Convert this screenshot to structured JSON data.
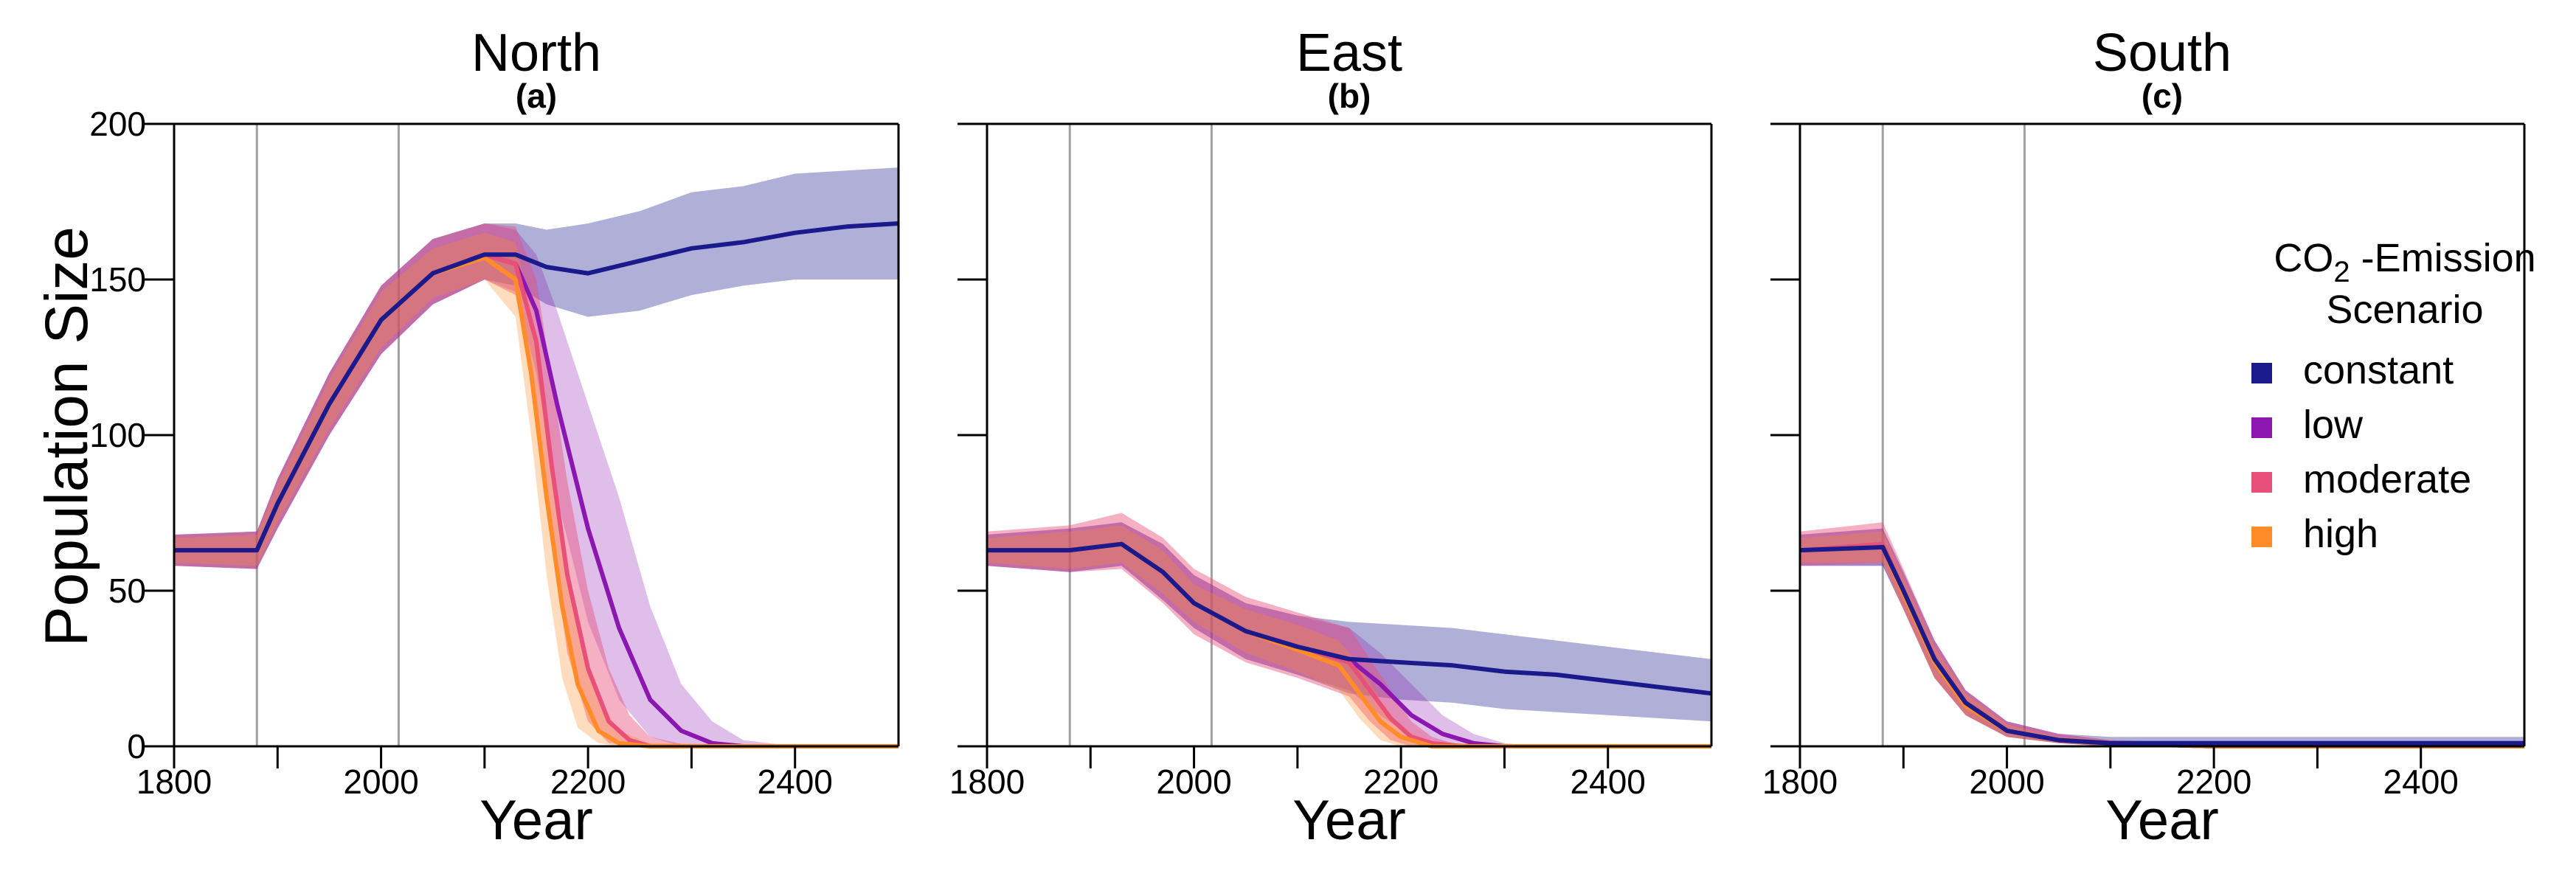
{
  "chart_data": [
    {
      "type": "line",
      "title": "North",
      "subtitle": "(a)",
      "xlabel": "Year",
      "ylabel": "Population Size",
      "xlim": [
        1800,
        2500
      ],
      "ylim": [
        0,
        200
      ],
      "xticks": [
        1800,
        2000,
        2200,
        2400
      ],
      "xticks_minor": [
        1900,
        2100,
        2300
      ],
      "yticks": [
        0,
        50,
        100,
        150,
        200
      ],
      "reference_lines_x": [
        1880,
        2017
      ],
      "series": [
        {
          "name": "constant",
          "color": "#1a1a8c",
          "band_opacity": 0.35,
          "x": [
            1800,
            1880,
            1900,
            1950,
            2000,
            2050,
            2100,
            2130,
            2160,
            2200,
            2250,
            2300,
            2350,
            2400,
            2450,
            2500
          ],
          "y": [
            63,
            63,
            78,
            110,
            137,
            152,
            158,
            158,
            154,
            152,
            156,
            160,
            162,
            165,
            167,
            168
          ],
          "lo": [
            58,
            57,
            70,
            100,
            126,
            142,
            150,
            148,
            142,
            138,
            140,
            145,
            148,
            150,
            150,
            150
          ],
          "hi": [
            68,
            69,
            86,
            120,
            148,
            163,
            168,
            168,
            166,
            168,
            172,
            178,
            180,
            184,
            185,
            186
          ]
        },
        {
          "name": "low",
          "color": "#8b16b0",
          "band_opacity": 0.28,
          "x": [
            1800,
            1880,
            1900,
            1950,
            2000,
            2050,
            2100,
            2130,
            2150,
            2170,
            2200,
            2230,
            2260,
            2290,
            2320,
            2350,
            2400,
            2500
          ],
          "y": [
            63,
            63,
            78,
            110,
            137,
            152,
            158,
            155,
            140,
            110,
            70,
            38,
            15,
            5,
            1,
            0,
            0,
            0
          ],
          "lo": [
            58,
            57,
            70,
            100,
            126,
            142,
            150,
            146,
            120,
            80,
            40,
            15,
            3,
            0,
            0,
            0,
            0,
            0
          ],
          "hi": [
            68,
            69,
            86,
            120,
            148,
            163,
            168,
            166,
            158,
            140,
            110,
            80,
            45,
            20,
            8,
            2,
            0,
            0
          ]
        },
        {
          "name": "moderate",
          "color": "#e8507a",
          "band_opacity": 0.45,
          "x": [
            1800,
            1880,
            1900,
            1950,
            2000,
            2050,
            2100,
            2130,
            2150,
            2165,
            2180,
            2200,
            2220,
            2240,
            2260,
            2300,
            2500
          ],
          "y": [
            63,
            63,
            78,
            110,
            137,
            152,
            158,
            155,
            130,
            90,
            55,
            25,
            8,
            2,
            0,
            0,
            0
          ],
          "lo": [
            58,
            57,
            70,
            100,
            126,
            142,
            150,
            145,
            110,
            65,
            30,
            8,
            1,
            0,
            0,
            0,
            0
          ],
          "hi": [
            68,
            69,
            86,
            120,
            148,
            163,
            168,
            167,
            150,
            118,
            85,
            50,
            25,
            10,
            3,
            0,
            0
          ]
        },
        {
          "name": "high",
          "color": "#ff8c28",
          "band_opacity": 0.3,
          "x": [
            1800,
            1880,
            1900,
            1950,
            2000,
            2050,
            2100,
            2130,
            2145,
            2160,
            2175,
            2190,
            2210,
            2230,
            2260,
            2500
          ],
          "y": [
            63,
            63,
            78,
            110,
            137,
            152,
            157,
            150,
            120,
            80,
            45,
            20,
            5,
            1,
            0,
            0
          ],
          "lo": [
            59,
            58,
            72,
            102,
            128,
            144,
            150,
            138,
            100,
            55,
            22,
            6,
            1,
            0,
            0,
            0
          ],
          "hi": [
            67,
            68,
            84,
            118,
            146,
            160,
            165,
            162,
            140,
            105,
            70,
            38,
            15,
            5,
            1,
            0
          ]
        }
      ]
    },
    {
      "type": "line",
      "title": "East",
      "subtitle": "(b)",
      "xlabel": "Year",
      "ylabel": "",
      "xlim": [
        1800,
        2500
      ],
      "ylim": [
        0,
        200
      ],
      "xticks": [
        1800,
        2000,
        2200,
        2400
      ],
      "xticks_minor": [
        1900,
        2100,
        2300
      ],
      "yticks": [
        0,
        50,
        100,
        150,
        200
      ],
      "reference_lines_x": [
        1880,
        2017
      ],
      "series": [
        {
          "name": "constant",
          "color": "#1a1a8c",
          "band_opacity": 0.35,
          "x": [
            1800,
            1880,
            1930,
            1970,
            2000,
            2050,
            2100,
            2150,
            2200,
            2250,
            2300,
            2350,
            2400,
            2450,
            2500
          ],
          "y": [
            63,
            63,
            65,
            56,
            46,
            37,
            32,
            28,
            27,
            26,
            24,
            23,
            21,
            19,
            17
          ],
          "lo": [
            58,
            56,
            58,
            47,
            38,
            28,
            23,
            17,
            15,
            14,
            12,
            11,
            10,
            9,
            8
          ],
          "hi": [
            68,
            70,
            72,
            65,
            55,
            46,
            42,
            40,
            39,
            38,
            36,
            34,
            32,
            30,
            28
          ]
        },
        {
          "name": "low",
          "color": "#8b16b0",
          "band_opacity": 0.28,
          "x": [
            1800,
            1880,
            1930,
            1970,
            2000,
            2050,
            2100,
            2150,
            2180,
            2210,
            2240,
            2270,
            2300,
            2330,
            2500
          ],
          "y": [
            63,
            63,
            65,
            56,
            46,
            37,
            32,
            28,
            20,
            10,
            4,
            1,
            0,
            0,
            0
          ],
          "lo": [
            58,
            56,
            58,
            47,
            38,
            28,
            23,
            18,
            10,
            3,
            0,
            0,
            0,
            0,
            0
          ],
          "hi": [
            68,
            70,
            72,
            65,
            55,
            46,
            42,
            38,
            30,
            20,
            10,
            4,
            1,
            0,
            0
          ]
        },
        {
          "name": "moderate",
          "color": "#e8507a",
          "band_opacity": 0.45,
          "x": [
            1800,
            1880,
            1930,
            1970,
            2000,
            2050,
            2100,
            2150,
            2170,
            2190,
            2210,
            2230,
            2260,
            2500
          ],
          "y": [
            63,
            63,
            65,
            56,
            46,
            37,
            32,
            27,
            18,
            9,
            3,
            1,
            0,
            0
          ],
          "lo": [
            58,
            56,
            57,
            46,
            36,
            27,
            22,
            16,
            8,
            2,
            0,
            0,
            0,
            0
          ],
          "hi": [
            69,
            71,
            75,
            67,
            57,
            48,
            43,
            38,
            28,
            18,
            8,
            3,
            0,
            0
          ]
        },
        {
          "name": "high",
          "color": "#ff8c28",
          "band_opacity": 0.3,
          "x": [
            1800,
            1880,
            1930,
            1970,
            2000,
            2050,
            2100,
            2140,
            2160,
            2180,
            2200,
            2230,
            2500
          ],
          "y": [
            63,
            63,
            65,
            56,
            46,
            37,
            31,
            26,
            17,
            8,
            3,
            0,
            0
          ],
          "lo": [
            59,
            57,
            59,
            49,
            40,
            30,
            24,
            18,
            9,
            2,
            0,
            0,
            0
          ],
          "hi": [
            67,
            69,
            71,
            63,
            52,
            44,
            39,
            34,
            26,
            15,
            6,
            1,
            0
          ]
        }
      ]
    },
    {
      "type": "line",
      "title": "South",
      "subtitle": "(c)",
      "xlabel": "Year",
      "ylabel": "",
      "xlim": [
        1800,
        2500
      ],
      "ylim": [
        0,
        200
      ],
      "xticks": [
        1800,
        2000,
        2200,
        2400
      ],
      "xticks_minor": [
        1900,
        2100,
        2300
      ],
      "yticks": [
        0,
        50,
        100,
        150,
        200
      ],
      "reference_lines_x": [
        1880,
        2017
      ],
      "series": [
        {
          "name": "constant",
          "color": "#1a1a8c",
          "band_opacity": 0.35,
          "x": [
            1800,
            1880,
            1900,
            1930,
            1960,
            2000,
            2050,
            2100,
            2200,
            2300,
            2400,
            2500
          ],
          "y": [
            63,
            64,
            50,
            28,
            14,
            5,
            2,
            1,
            1,
            1,
            1,
            1
          ],
          "lo": [
            58,
            58,
            44,
            22,
            10,
            3,
            1,
            0,
            0,
            0,
            0,
            0
          ],
          "hi": [
            68,
            70,
            56,
            34,
            18,
            8,
            4,
            3,
            3,
            3,
            3,
            3
          ]
        },
        {
          "name": "low",
          "color": "#8b16b0",
          "band_opacity": 0.28,
          "x": [
            1800,
            1880,
            1900,
            1930,
            1960,
            2000,
            2050,
            2100,
            2200,
            2500
          ],
          "y": [
            63,
            64,
            50,
            28,
            14,
            5,
            2,
            1,
            0,
            0
          ],
          "lo": [
            58,
            58,
            44,
            22,
            10,
            3,
            1,
            0,
            0,
            0
          ],
          "hi": [
            68,
            70,
            56,
            34,
            18,
            8,
            4,
            2,
            1,
            0
          ]
        },
        {
          "name": "moderate",
          "color": "#e8507a",
          "band_opacity": 0.45,
          "x": [
            1800,
            1880,
            1900,
            1930,
            1960,
            2000,
            2050,
            2100,
            2200,
            2500
          ],
          "y": [
            63,
            65,
            50,
            28,
            14,
            5,
            2,
            1,
            0,
            0
          ],
          "lo": [
            58,
            59,
            44,
            22,
            10,
            3,
            1,
            0,
            0,
            0
          ],
          "hi": [
            69,
            72,
            57,
            34,
            18,
            8,
            4,
            2,
            1,
            0
          ]
        },
        {
          "name": "high",
          "color": "#ff8c28",
          "band_opacity": 0.3,
          "x": [
            1800,
            1880,
            1900,
            1930,
            1960,
            2000,
            2050,
            2100,
            2200,
            2500
          ],
          "y": [
            63,
            64,
            49,
            27,
            13,
            5,
            2,
            1,
            0,
            0
          ],
          "lo": [
            59,
            59,
            44,
            22,
            10,
            3,
            1,
            0,
            0,
            0
          ],
          "hi": [
            67,
            69,
            54,
            32,
            17,
            7,
            3,
            2,
            1,
            0
          ]
        }
      ]
    }
  ],
  "legend": {
    "title_prefix": "CO",
    "title_subscript": "2",
    "title_suffix": " -Emission",
    "title_line2": "Scenario",
    "items": [
      {
        "label": "constant",
        "color": "#1a1a8c"
      },
      {
        "label": "low",
        "color": "#8b16b0"
      },
      {
        "label": "moderate",
        "color": "#e8507a"
      },
      {
        "label": "high",
        "color": "#ff8c28"
      }
    ]
  }
}
